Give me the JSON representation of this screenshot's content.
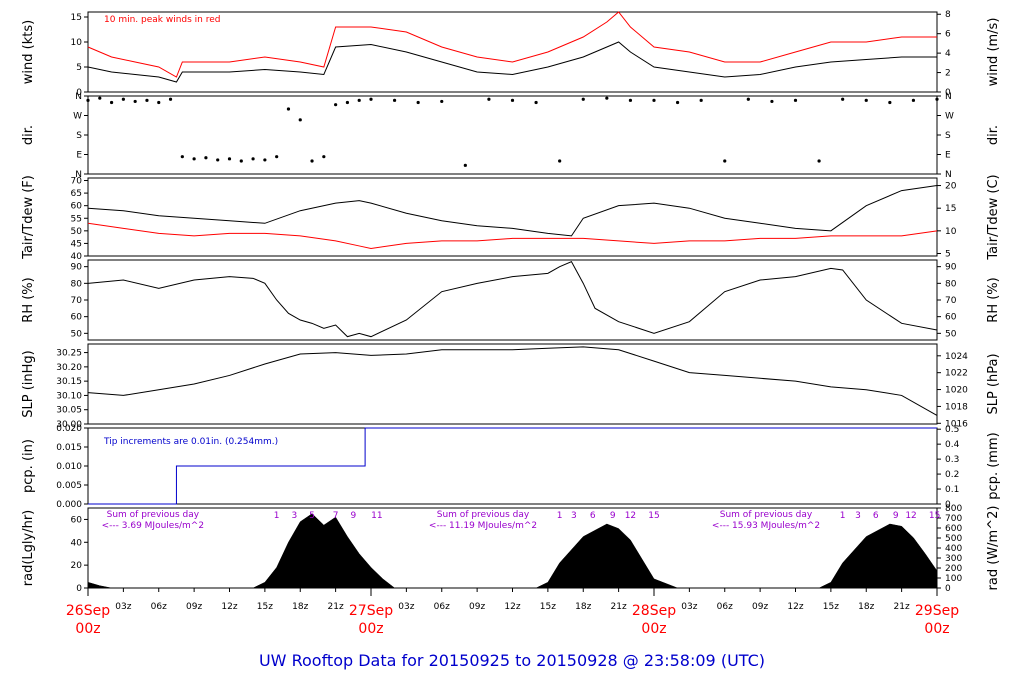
{
  "title": "UW Rooftop Data for 20150925  to  20150928 @ 23:58:09  (UTC)",
  "colors": {
    "black": "#000000",
    "red": "#ff0000",
    "blue": "#0000cc",
    "purple": "#9900cc",
    "title": "#0000cc"
  },
  "time_axis": {
    "major": [
      {
        "label": "26Sep",
        "sub": "00z",
        "hour": 0
      },
      {
        "label": "27Sep",
        "sub": "00z",
        "hour": 24
      },
      {
        "label": "28Sep",
        "sub": "00z",
        "hour": 48
      },
      {
        "label": "29Sep",
        "sub": "00z",
        "hour": 72
      }
    ],
    "minor": [
      {
        "label": "03z",
        "hour": 3
      },
      {
        "label": "06z",
        "hour": 6
      },
      {
        "label": "09z",
        "hour": 9
      },
      {
        "label": "12z",
        "hour": 12
      },
      {
        "label": "15z",
        "hour": 15
      },
      {
        "label": "18z",
        "hour": 18
      },
      {
        "label": "21z",
        "hour": 21
      },
      {
        "label": "03z",
        "hour": 27
      },
      {
        "label": "06z",
        "hour": 30
      },
      {
        "label": "09z",
        "hour": 33
      },
      {
        "label": "12z",
        "hour": 36
      },
      {
        "label": "15z",
        "hour": 39
      },
      {
        "label": "18z",
        "hour": 42
      },
      {
        "label": "21z",
        "hour": 45
      },
      {
        "label": "03z",
        "hour": 51
      },
      {
        "label": "06z",
        "hour": 54
      },
      {
        "label": "09z",
        "hour": 57
      },
      {
        "label": "12z",
        "hour": 60
      },
      {
        "label": "15z",
        "hour": 63
      },
      {
        "label": "18z",
        "hour": 66
      },
      {
        "label": "21z",
        "hour": 69
      }
    ]
  },
  "chart_data": [
    {
      "id": "wind",
      "type": "line",
      "ylabel": "wind (kts)",
      "ylabel_right": "wind (m/s)",
      "ylim": [
        0,
        16
      ],
      "yticks": [
        0,
        5,
        10,
        15
      ],
      "yticks_right": [
        0,
        2,
        4,
        6,
        8
      ],
      "right_scale": 0.514444,
      "annotation": "10 min. peak winds in red",
      "series": [
        {
          "name": "wind",
          "color": "#000000",
          "x": [
            0,
            2,
            4,
            6,
            7.5,
            8,
            12,
            15,
            18,
            20,
            21,
            24,
            27,
            30,
            33,
            36,
            39,
            42,
            44,
            45,
            46,
            48,
            51,
            54,
            57,
            60,
            63,
            66,
            69,
            72
          ],
          "y": [
            5,
            4,
            3.5,
            3,
            2,
            4,
            4,
            4.5,
            4,
            3.5,
            9,
            9.5,
            8,
            6,
            4,
            3.5,
            5,
            7,
            9,
            10,
            8,
            5,
            4,
            3,
            3.5,
            5,
            6,
            6.5,
            7,
            7
          ]
        },
        {
          "name": "10 min. peak",
          "color": "#ff0000",
          "x": [
            0,
            2,
            4,
            6,
            7.5,
            8,
            12,
            15,
            18,
            20,
            21,
            24,
            27,
            30,
            33,
            36,
            39,
            42,
            44,
            45,
            46,
            48,
            51,
            54,
            57,
            60,
            63,
            66,
            69,
            72
          ],
          "y": [
            9,
            7,
            6,
            5,
            3,
            6,
            6,
            7,
            6,
            5,
            13,
            13,
            12,
            9,
            7,
            6,
            8,
            11,
            14,
            16,
            13,
            9,
            8,
            6,
            6,
            8,
            10,
            10,
            11,
            11
          ]
        }
      ]
    },
    {
      "id": "dir",
      "type": "scatter",
      "ylabel": "dir.",
      "ylabel_right": "dir.",
      "ylim": [
        0,
        360
      ],
      "yticks": [
        0,
        90,
        180,
        270,
        360
      ],
      "ytick_labels": [
        "N",
        "E",
        "S",
        "W",
        "N"
      ],
      "series": [
        {
          "name": "direction",
          "color": "#000000",
          "x": [
            0,
            1,
            2,
            3,
            4,
            5,
            6,
            7,
            8,
            9,
            10,
            11,
            12,
            13,
            14,
            15,
            16,
            17,
            18,
            19,
            20,
            21,
            22,
            23,
            24,
            26,
            28,
            30,
            32,
            34,
            36,
            38,
            40,
            42,
            44,
            46,
            48,
            50,
            52,
            54,
            56,
            58,
            60,
            62,
            64,
            66,
            68,
            70,
            72
          ],
          "y": [
            340,
            350,
            330,
            345,
            335,
            340,
            330,
            345,
            80,
            70,
            75,
            65,
            70,
            60,
            70,
            65,
            80,
            300,
            250,
            60,
            80,
            320,
            330,
            340,
            345,
            340,
            330,
            335,
            40,
            345,
            340,
            330,
            60,
            345,
            350,
            340,
            340,
            330,
            340,
            60,
            345,
            335,
            340,
            60,
            345,
            340,
            330,
            340,
            345
          ]
        }
      ]
    },
    {
      "id": "temp",
      "type": "line",
      "ylabel": "Tair/Tdew (F)",
      "ylabel_right": "Tair/Tdew (C)",
      "ylim": [
        40,
        71
      ],
      "yticks": [
        40,
        45,
        50,
        55,
        60,
        65,
        70
      ],
      "yticks_right": [
        5,
        10,
        15,
        20
      ],
      "series": [
        {
          "name": "Tair",
          "color": "#000000",
          "x": [
            0,
            3,
            6,
            9,
            12,
            15,
            18,
            21,
            23,
            24,
            27,
            30,
            33,
            36,
            39,
            41,
            42,
            45,
            48,
            51,
            54,
            57,
            60,
            63,
            66,
            69,
            72
          ],
          "y": [
            59,
            58,
            56,
            55,
            54,
            53,
            58,
            61,
            62,
            61,
            57,
            54,
            52,
            51,
            49,
            48,
            55,
            60,
            61,
            59,
            55,
            53,
            51,
            50,
            60,
            66,
            68
          ]
        },
        {
          "name": "Tdew",
          "color": "#ff0000",
          "x": [
            0,
            3,
            6,
            9,
            12,
            15,
            18,
            21,
            23,
            24,
            27,
            30,
            33,
            36,
            39,
            41,
            42,
            45,
            48,
            51,
            54,
            57,
            60,
            63,
            66,
            69,
            72
          ],
          "y": [
            53,
            51,
            49,
            48,
            49,
            49,
            48,
            46,
            44,
            43,
            45,
            46,
            46,
            47,
            47,
            47,
            47,
            46,
            45,
            46,
            46,
            47,
            47,
            48,
            48,
            48,
            50
          ]
        }
      ]
    },
    {
      "id": "rh",
      "type": "line",
      "ylabel": "RH (%)",
      "ylabel_right": "RH (%)",
      "ylim": [
        46,
        94
      ],
      "yticks": [
        50,
        60,
        70,
        80,
        90
      ],
      "yticks_right": [
        50,
        60,
        70,
        80,
        90
      ],
      "series": [
        {
          "name": "RH",
          "color": "#000000",
          "x": [
            0,
            3,
            6,
            9,
            12,
            14,
            15,
            16,
            17,
            18,
            19,
            20,
            21,
            22,
            23,
            24,
            27,
            30,
            33,
            36,
            39,
            40,
            41,
            42,
            43,
            45,
            48,
            51,
            54,
            57,
            60,
            63,
            64,
            66,
            69,
            72
          ],
          "y": [
            80,
            82,
            77,
            82,
            84,
            83,
            80,
            70,
            62,
            58,
            56,
            53,
            55,
            48,
            50,
            48,
            58,
            75,
            80,
            84,
            86,
            90,
            93,
            80,
            65,
            57,
            50,
            57,
            75,
            82,
            84,
            89,
            88,
            70,
            56,
            52
          ]
        }
      ]
    },
    {
      "id": "slp",
      "type": "line",
      "ylabel": "SLP (inHg)",
      "ylabel_right": "SLP (hPa)",
      "ylim": [
        30.0,
        30.28
      ],
      "yticks": [
        30.0,
        30.05,
        30.1,
        30.15,
        30.2,
        30.25
      ],
      "ytick_labels": [
        "30.00",
        "30.05",
        "30.10",
        "30.15",
        "30.20",
        "30.25"
      ],
      "yticks_right": [
        1016,
        1018,
        1020,
        1022,
        1024
      ],
      "series": [
        {
          "name": "SLP",
          "color": "#000000",
          "x": [
            0,
            3,
            6,
            9,
            12,
            15,
            18,
            21,
            24,
            27,
            30,
            33,
            36,
            39,
            42,
            45,
            48,
            51,
            54,
            57,
            60,
            63,
            66,
            69,
            72
          ],
          "y": [
            30.11,
            30.1,
            30.12,
            30.14,
            30.17,
            30.21,
            30.245,
            30.25,
            30.24,
            30.245,
            30.26,
            30.26,
            30.26,
            30.265,
            30.27,
            30.26,
            30.22,
            30.18,
            30.17,
            30.16,
            30.15,
            30.13,
            30.12,
            30.1,
            30.03
          ]
        }
      ]
    },
    {
      "id": "pcp",
      "type": "line",
      "ylabel": "pcp. (in)",
      "ylabel_right": "pcp. (mm)",
      "ylim": [
        0,
        0.02
      ],
      "yticks": [
        0,
        0.005,
        0.01,
        0.015,
        0.02
      ],
      "ytick_labels": [
        "0.000",
        "0.005",
        "0.010",
        "0.015",
        "0.020"
      ],
      "yticks_right": [
        0,
        0.1,
        0.2,
        0.3,
        0.4,
        0.5
      ],
      "annotation": "Tip increments are 0.01in. (0.254mm.)",
      "series": [
        {
          "name": "precip",
          "color": "#0000cc",
          "x": [
            0,
            7.5,
            7.5,
            23.5,
            23.5,
            72
          ],
          "y": [
            0,
            0,
            0.01,
            0.01,
            0.02,
            0.02
          ]
        }
      ]
    },
    {
      "id": "rad",
      "type": "area",
      "ylabel": "rad(Lgly/hr)",
      "ylabel_right": "rad (W/m^2)",
      "ylim": [
        0,
        70
      ],
      "yticks": [
        0,
        20,
        40,
        60
      ],
      "yticks_right": [
        0,
        100,
        200,
        300,
        400,
        500,
        600,
        700,
        800
      ],
      "daily_totals": [
        {
          "label": "Sum of previous day",
          "value": "<--- 3.69 MJoules/m^2",
          "hour": 5.5
        },
        {
          "label": "Sum of previous day",
          "value": "<--- 11.19 MJoules/m^2",
          "hour": 33.5
        },
        {
          "label": "Sum of previous day",
          "value": "<--- 15.93 MJoules/m^2",
          "hour": 57.5
        }
      ],
      "hour_marks": [
        {
          "label": "1",
          "hour": 16
        },
        {
          "label": "3",
          "hour": 17.5
        },
        {
          "label": "5",
          "hour": 19
        },
        {
          "label": "7",
          "hour": 21
        },
        {
          "label": "9",
          "hour": 22.5
        },
        {
          "label": "11",
          "hour": 24.5
        },
        {
          "label": "1",
          "hour": 40
        },
        {
          "label": "3",
          "hour": 41.2
        },
        {
          "label": "6",
          "hour": 42.8
        },
        {
          "label": "9",
          "hour": 44.5
        },
        {
          "label": "12",
          "hour": 46
        },
        {
          "label": "15",
          "hour": 48
        },
        {
          "label": "1",
          "hour": 64
        },
        {
          "label": "3",
          "hour": 65.3
        },
        {
          "label": "6",
          "hour": 66.8
        },
        {
          "label": "9",
          "hour": 68.5
        },
        {
          "label": "12",
          "hour": 69.8
        },
        {
          "label": "15",
          "hour": 71.8
        }
      ],
      "series": [
        {
          "name": "radiation",
          "color": "#000000",
          "x": [
            0,
            1,
            2,
            14,
            15,
            16,
            17,
            18,
            19,
            20,
            21,
            22,
            23,
            24,
            25,
            26,
            38,
            39,
            40,
            42,
            44,
            45,
            46,
            47,
            48,
            50,
            62,
            63,
            64,
            66,
            68,
            69,
            70,
            71,
            72
          ],
          "y": [
            5,
            2,
            0,
            0,
            5,
            18,
            40,
            58,
            65,
            55,
            62,
            45,
            30,
            18,
            8,
            0,
            0,
            5,
            22,
            45,
            56,
            52,
            42,
            25,
            8,
            0,
            0,
            5,
            22,
            45,
            56,
            54,
            44,
            30,
            15
          ]
        }
      ]
    }
  ]
}
